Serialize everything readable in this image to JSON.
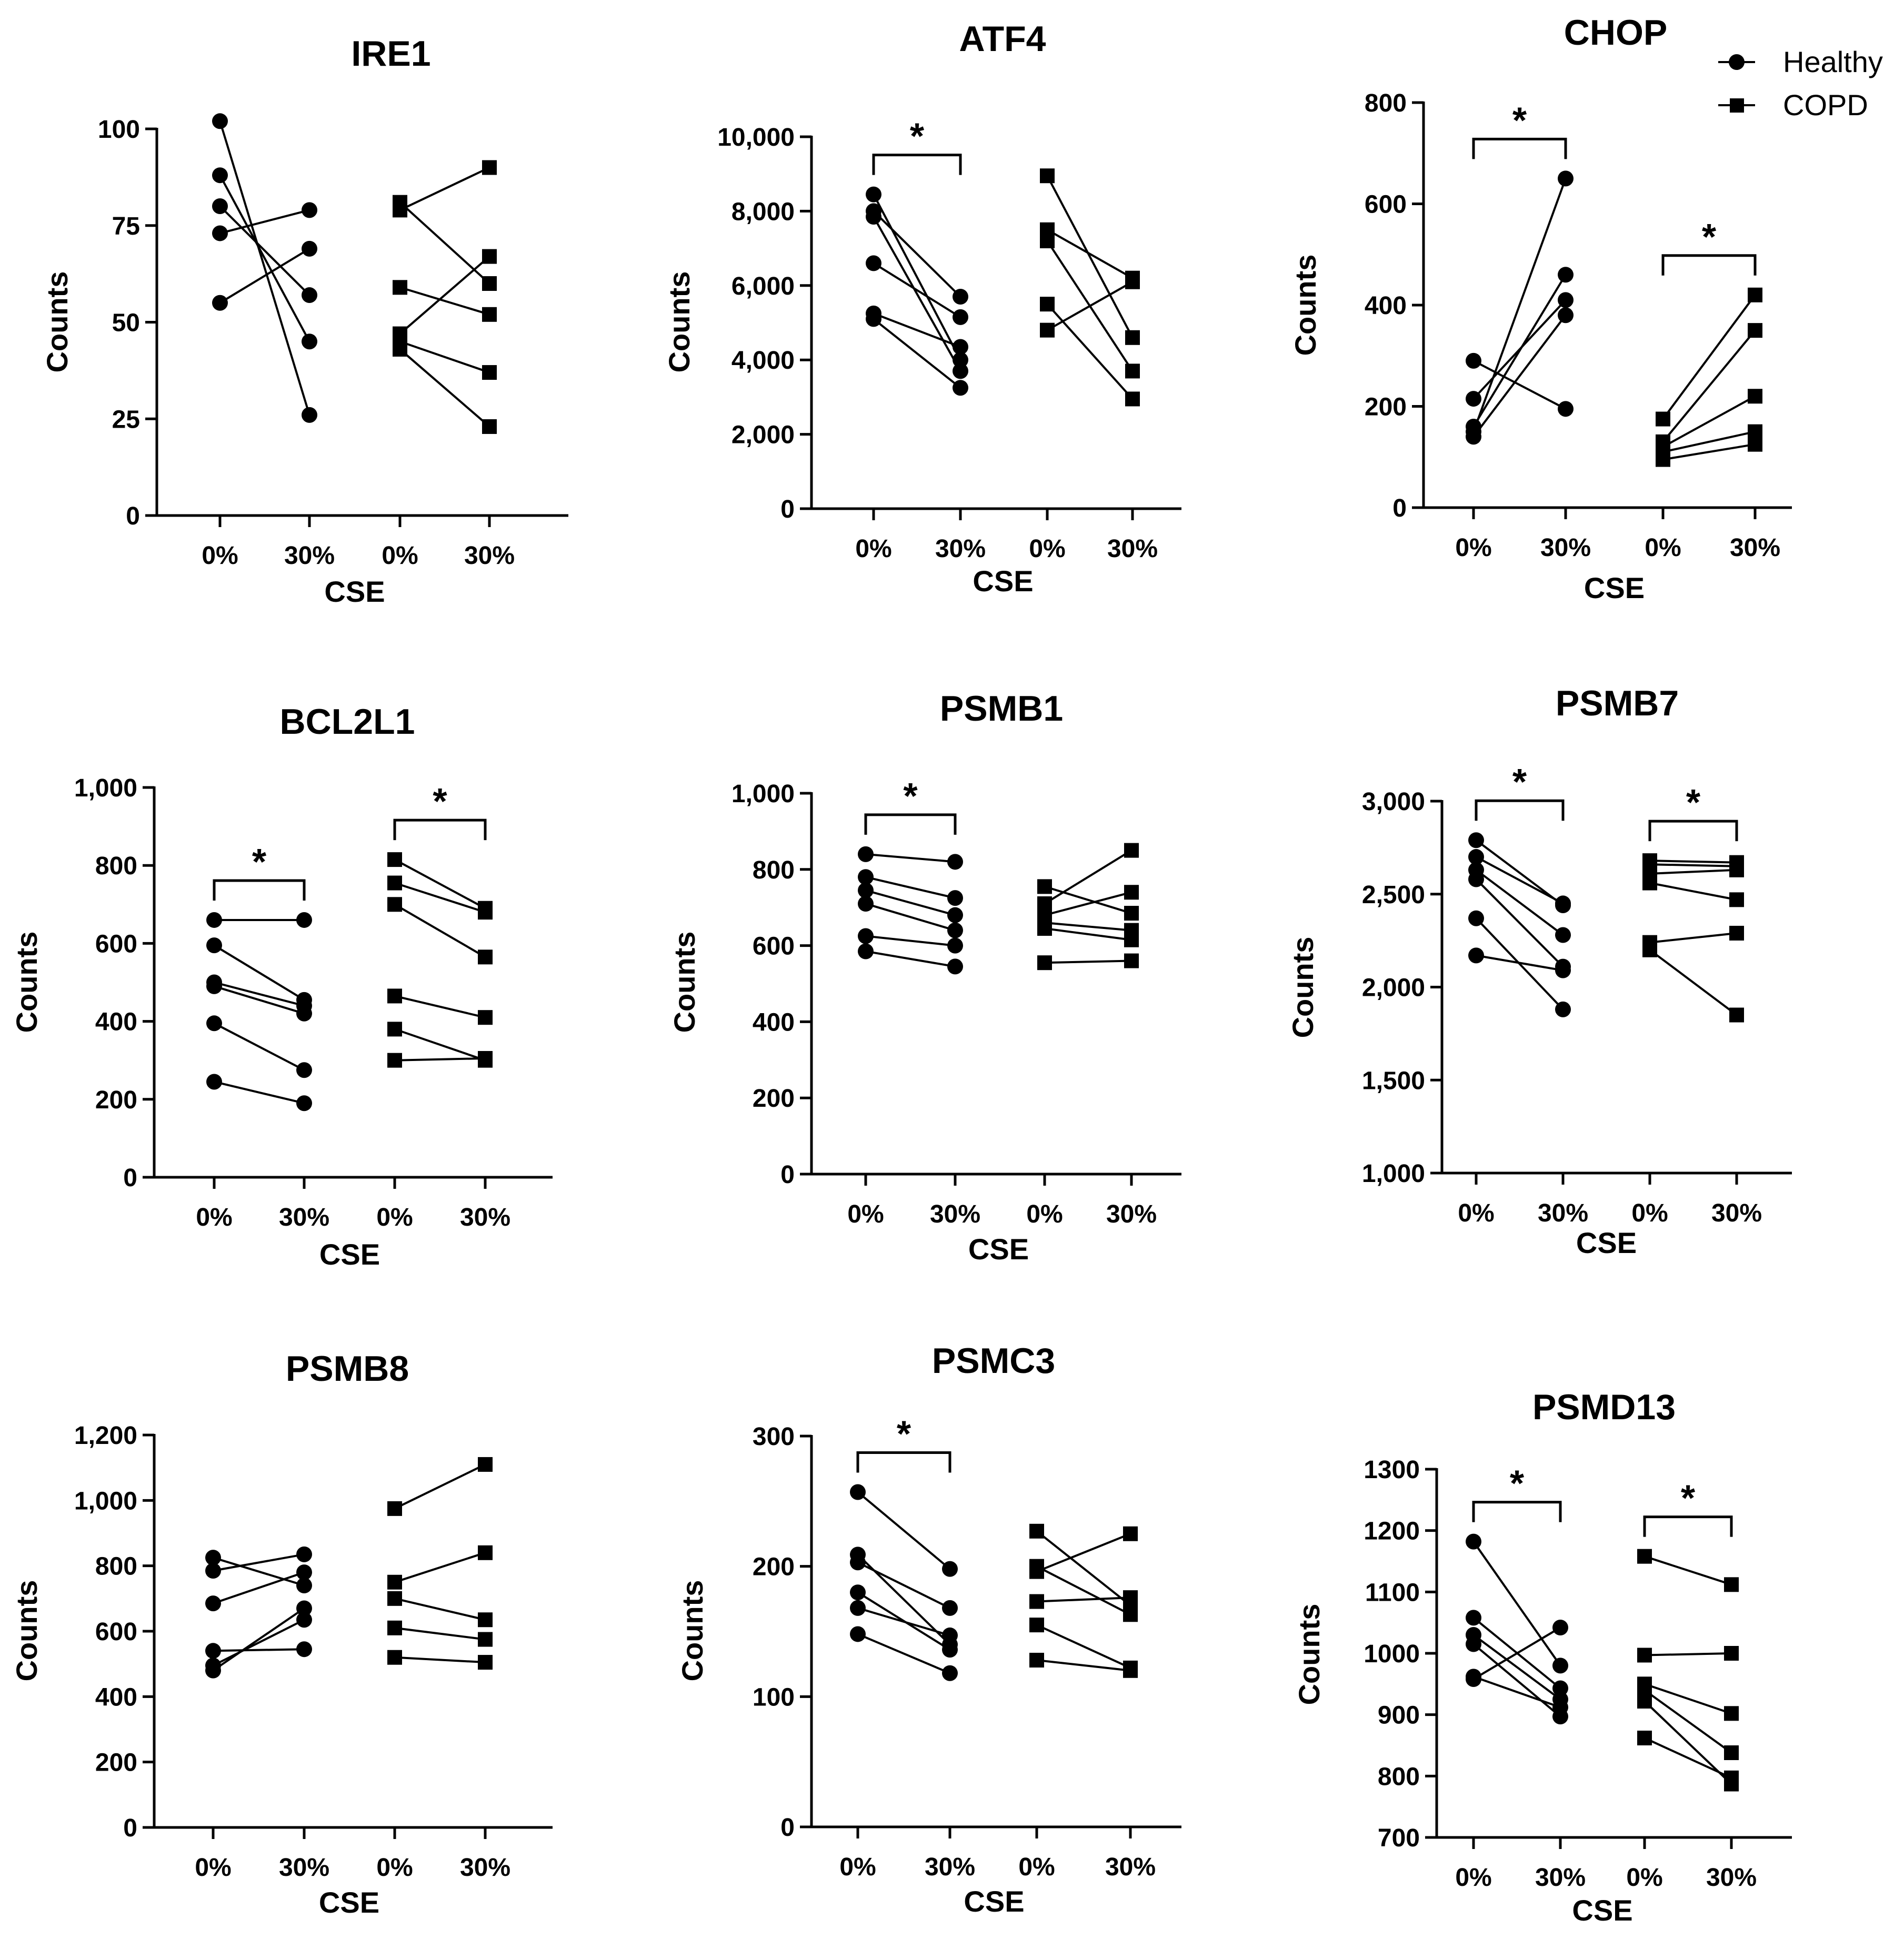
{
  "figure": {
    "legend": [
      {
        "label": "Healthy",
        "marker": "circle"
      },
      {
        "label": "COPD",
        "marker": "square"
      }
    ]
  },
  "chart_data": [
    {
      "type": "scatter",
      "title": "IRE1",
      "xlabel": "CSE",
      "ylabel": "Counts",
      "categories": [
        "0%",
        "30%",
        "0%",
        "30%"
      ],
      "ylim": [
        0,
        100
      ],
      "ticks": [
        0,
        25,
        50,
        75,
        100
      ],
      "significance": [],
      "series": [
        {
          "name": "Healthy",
          "marker": "circle",
          "pairs": [
            [
              102,
              26
            ],
            [
              88,
              45
            ],
            [
              80,
              57
            ],
            [
              73,
              79
            ],
            [
              55,
              69
            ]
          ]
        },
        {
          "name": "COPD",
          "marker": "square",
          "pairs": [
            [
              81,
              60
            ],
            [
              79,
              90
            ],
            [
              59,
              52
            ],
            [
              47,
              67
            ],
            [
              45,
              37
            ],
            [
              43,
              23
            ]
          ]
        }
      ]
    },
    {
      "type": "scatter",
      "title": "ATF4",
      "xlabel": "CSE",
      "ylabel": "Counts",
      "categories": [
        "0%",
        "30%",
        "0%",
        "30%"
      ],
      "ylim": [
        0,
        10000
      ],
      "ticks": [
        0,
        2000,
        4000,
        6000,
        8000,
        10000
      ],
      "significance": [
        "healthy"
      ],
      "series": [
        {
          "name": "Healthy",
          "marker": "circle",
          "pairs": [
            [
              8450,
              4000
            ],
            [
              8000,
              5700
            ],
            [
              7850,
              3700
            ],
            [
              6600,
              5150
            ],
            [
              5250,
              4350
            ],
            [
              5100,
              3250
            ]
          ]
        },
        {
          "name": "COPD",
          "marker": "square",
          "pairs": [
            [
              8950,
              4600
            ],
            [
              7500,
              6200
            ],
            [
              7200,
              3700
            ],
            [
              5500,
              2950
            ],
            [
              4800,
              6100
            ]
          ]
        }
      ]
    },
    {
      "type": "scatter",
      "title": "CHOP",
      "xlabel": "CSE",
      "ylabel": "Counts",
      "categories": [
        "0%",
        "30%",
        "0%",
        "30%"
      ],
      "ylim": [
        0,
        800
      ],
      "ticks": [
        0,
        200,
        400,
        600,
        800
      ],
      "significance": [
        "healthy",
        "copd"
      ],
      "series": [
        {
          "name": "Healthy",
          "marker": "circle",
          "pairs": [
            [
              290,
              195
            ],
            [
              215,
              410
            ],
            [
              160,
              460
            ],
            [
              150,
              650
            ],
            [
              140,
              380
            ]
          ]
        },
        {
          "name": "COPD",
          "marker": "square",
          "pairs": [
            [
              175,
              420
            ],
            [
              130,
              350
            ],
            [
              120,
              220
            ],
            [
              110,
              150
            ],
            [
              95,
              125
            ]
          ]
        }
      ]
    },
    {
      "type": "scatter",
      "title": "BCL2L1",
      "xlabel": "CSE",
      "ylabel": "Counts",
      "categories": [
        "0%",
        "30%",
        "0%",
        "30%"
      ],
      "ylim": [
        0,
        1000
      ],
      "ticks": [
        0,
        200,
        400,
        600,
        800,
        1000
      ],
      "significance": [
        "healthy",
        "copd"
      ],
      "series": [
        {
          "name": "Healthy",
          "marker": "circle",
          "pairs": [
            [
              660,
              660
            ],
            [
              595,
              455
            ],
            [
              500,
              440
            ],
            [
              490,
              420
            ],
            [
              395,
              275
            ],
            [
              245,
              190
            ]
          ]
        },
        {
          "name": "COPD",
          "marker": "square",
          "pairs": [
            [
              815,
              690
            ],
            [
              755,
              680
            ],
            [
              700,
              565
            ],
            [
              465,
              410
            ],
            [
              380,
              300
            ],
            [
              300,
              305
            ]
          ]
        }
      ]
    },
    {
      "type": "scatter",
      "title": "PSMB1",
      "xlabel": "CSE",
      "ylabel": "Counts",
      "categories": [
        "0%",
        "30%",
        "0%",
        "30%"
      ],
      "ylim": [
        0,
        1000
      ],
      "ticks": [
        0,
        200,
        400,
        600,
        800,
        1000
      ],
      "significance": [
        "healthy"
      ],
      "series": [
        {
          "name": "Healthy",
          "marker": "circle",
          "pairs": [
            [
              840,
              820
            ],
            [
              780,
              725
            ],
            [
              745,
              680
            ],
            [
              710,
              640
            ],
            [
              625,
              600
            ],
            [
              585,
              545
            ]
          ]
        },
        {
          "name": "COPD",
          "marker": "square",
          "pairs": [
            [
              755,
              685
            ],
            [
              710,
              850
            ],
            [
              680,
              740
            ],
            [
              660,
              640
            ],
            [
              645,
              615
            ],
            [
              555,
              560
            ]
          ]
        }
      ]
    },
    {
      "type": "scatter",
      "title": "PSMB7",
      "xlabel": "CSE",
      "ylabel": "Counts",
      "categories": [
        "0%",
        "30%",
        "0%",
        "30%"
      ],
      "ylim": [
        1000,
        3000
      ],
      "ticks": [
        1000,
        1500,
        2000,
        2500,
        3000
      ],
      "significance": [
        "healthy",
        "copd"
      ],
      "series": [
        {
          "name": "Healthy",
          "marker": "circle",
          "pairs": [
            [
              2790,
              2440
            ],
            [
              2700,
              2450
            ],
            [
              2630,
              2280
            ],
            [
              2580,
              2110
            ],
            [
              2370,
              1880
            ],
            [
              2170,
              2090
            ]
          ]
        },
        {
          "name": "COPD",
          "marker": "square",
          "pairs": [
            [
              2680,
              2670
            ],
            [
              2660,
              2650
            ],
            [
              2610,
              2630
            ],
            [
              2560,
              2470
            ],
            [
              2240,
              2290
            ],
            [
              2200,
              1850
            ]
          ]
        }
      ]
    },
    {
      "type": "scatter",
      "title": "PSMB8",
      "xlabel": "CSE",
      "ylabel": "Counts",
      "categories": [
        "0%",
        "30%",
        "0%",
        "30%"
      ],
      "ylim": [
        0,
        1200
      ],
      "ticks": [
        0,
        200,
        400,
        600,
        800,
        1000,
        1200
      ],
      "significance": [],
      "series": [
        {
          "name": "Healthy",
          "marker": "circle",
          "pairs": [
            [
              825,
              740
            ],
            [
              785,
              835
            ],
            [
              685,
              780
            ],
            [
              540,
              545
            ],
            [
              495,
              635
            ],
            [
              480,
              670
            ]
          ]
        },
        {
          "name": "COPD",
          "marker": "square",
          "pairs": [
            [
              975,
              1110
            ],
            [
              750,
              840
            ],
            [
              700,
              635
            ],
            [
              610,
              575
            ],
            [
              520,
              505
            ]
          ]
        }
      ]
    },
    {
      "type": "scatter",
      "title": "PSMC3",
      "xlabel": "CSE",
      "ylabel": "Counts",
      "categories": [
        "0%",
        "30%",
        "0%",
        "30%"
      ],
      "ylim": [
        0,
        300
      ],
      "ticks": [
        0,
        100,
        200,
        300
      ],
      "significance": [
        "healthy"
      ],
      "series": [
        {
          "name": "Healthy",
          "marker": "circle",
          "pairs": [
            [
              257,
              198
            ],
            [
              209,
              140
            ],
            [
              203,
              168
            ],
            [
              180,
              136
            ],
            [
              168,
              147
            ],
            [
              148,
              118
            ]
          ]
        },
        {
          "name": "COPD",
          "marker": "square",
          "pairs": [
            [
              227,
              170
            ],
            [
              200,
              163
            ],
            [
              196,
              225
            ],
            [
              173,
              176
            ],
            [
              155,
              122
            ],
            [
              128,
              120
            ]
          ]
        }
      ]
    },
    {
      "type": "scatter",
      "title": "PSMD13",
      "xlabel": "CSE",
      "ylabel": "Counts",
      "categories": [
        "0%",
        "30%",
        "0%",
        "30%"
      ],
      "ylim": [
        700,
        1300
      ],
      "ticks": [
        700,
        800,
        900,
        1000,
        1100,
        1200,
        1300
      ],
      "significance": [
        "healthy",
        "copd"
      ],
      "series": [
        {
          "name": "Healthy",
          "marker": "circle",
          "pairs": [
            [
              1182,
              980
            ],
            [
              1058,
              943
            ],
            [
              1030,
              925
            ],
            [
              1015,
              897
            ],
            [
              962,
              912
            ],
            [
              958,
              1042
            ]
          ]
        },
        {
          "name": "COPD",
          "marker": "square",
          "pairs": [
            [
              1158,
              1112
            ],
            [
              997,
              1000
            ],
            [
              950,
              902
            ],
            [
              940,
              838
            ],
            [
              922,
              787
            ],
            [
              862,
              797
            ]
          ]
        }
      ]
    }
  ]
}
